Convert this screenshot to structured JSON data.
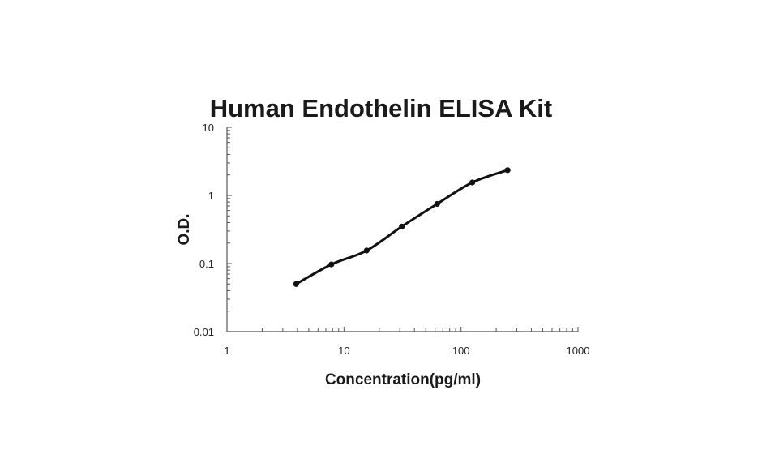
{
  "chart_data": {
    "type": "scatter",
    "title": "Human Endothelin ELISA Kit",
    "xlabel": "Concentration(pg/ml)",
    "ylabel": "O.D.",
    "x_scale": "log",
    "y_scale": "log",
    "xlim": [
      1,
      1000
    ],
    "ylim": [
      0.01,
      10
    ],
    "x_ticks": [
      "1",
      "10",
      "100",
      "1000"
    ],
    "y_ticks": [
      "10",
      "1",
      "0.1",
      "0.01"
    ],
    "grid": false,
    "legend": "none",
    "series": [
      {
        "x": [
          3.9,
          7.8,
          15.6,
          31.25,
          62.5,
          125,
          250
        ],
        "y": [
          0.05,
          0.097,
          0.155,
          0.35,
          0.75,
          1.55,
          2.35
        ],
        "line": "smooth-fit",
        "marker": "circle",
        "color": "#111111"
      }
    ]
  }
}
